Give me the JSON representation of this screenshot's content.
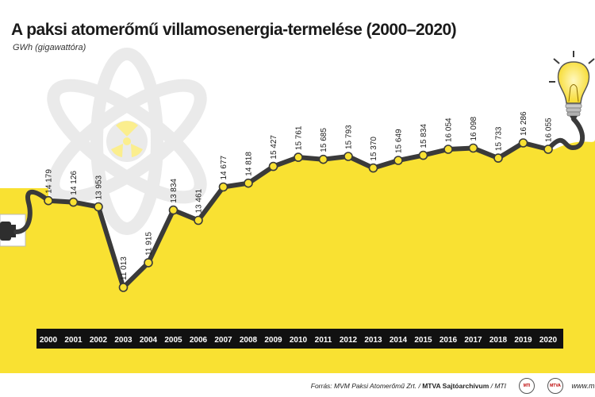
{
  "title": "A paksi atomerőmű villamosenergia-termelése (2000–2020)",
  "unit": "GWh (gigawattóra)",
  "footer": {
    "source_prefix": "Forrás: MVM Paksi Atomerőmű Zrt. / ",
    "source_org": "MTVA Sajtóarchívum",
    "source_suffix": " / MTI",
    "url": "www.mt"
  },
  "colors": {
    "fill": "#f9e132",
    "line": "#3a3a3a",
    "marker": "#f9e132",
    "year_band": "#111111"
  },
  "chart_data": {
    "type": "line",
    "title": "A paksi atomerőmű villamosenergia-termelése (2000–2020)",
    "ylabel": "GWh (gigawattóra)",
    "categories": [
      "2000",
      "2001",
      "2002",
      "2003",
      "2004",
      "2005",
      "2006",
      "2007",
      "2008",
      "2009",
      "2010",
      "2011",
      "2012",
      "2013",
      "2014",
      "2015",
      "2016",
      "2017",
      "2018",
      "2019",
      "2020"
    ],
    "values": [
      14179,
      14126,
      13953,
      11013,
      11915,
      13834,
      13461,
      14677,
      14818,
      15427,
      15761,
      15685,
      15793,
      15370,
      15649,
      15834,
      16054,
      16098,
      15733,
      16286,
      16055
    ],
    "value_labels": [
      "14 179",
      "14 126",
      "13 953",
      "11 013",
      "11 915",
      "13 834",
      "13 461",
      "14 677",
      "14 818",
      "15 427",
      "15 761",
      "15 685",
      "15 793",
      "15 370",
      "15 649",
      "15 834",
      "16 054",
      "16 098",
      "15 733",
      "16 286",
      "16 055"
    ],
    "grid": false,
    "legend": "none"
  }
}
